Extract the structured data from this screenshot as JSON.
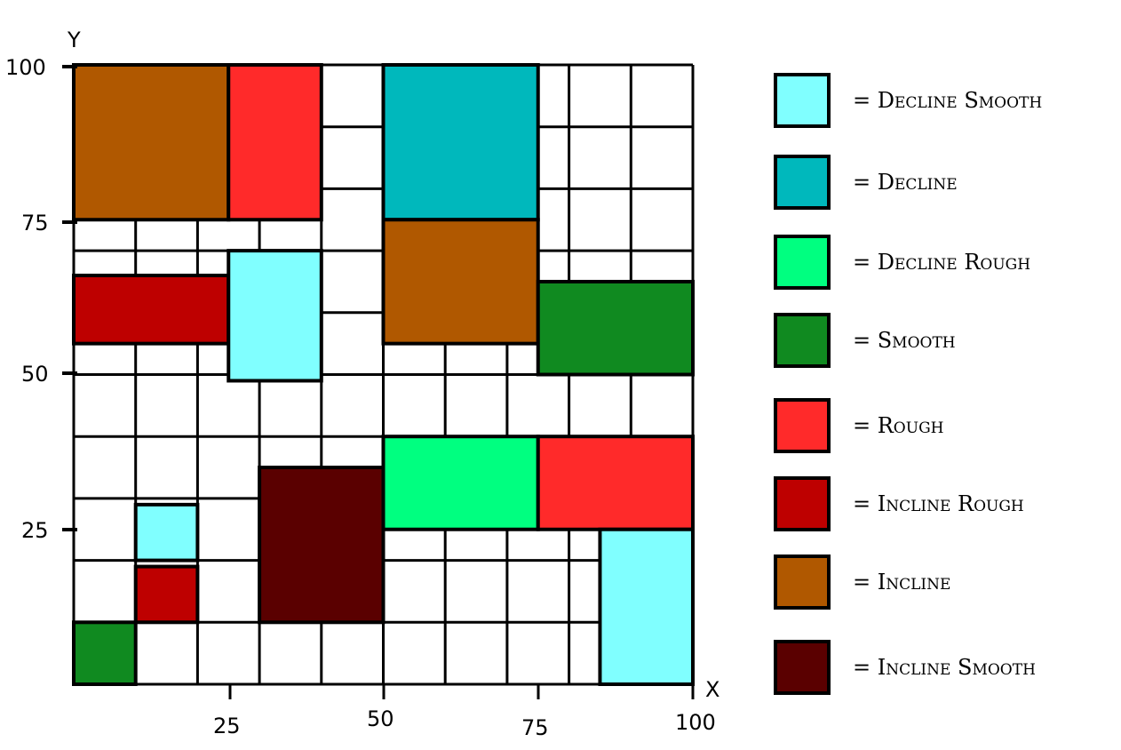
{
  "axes": {
    "x_label": "X",
    "y_label": "Y",
    "x_ticks": [
      "25",
      "50",
      "75",
      "100"
    ],
    "y_ticks": [
      "100",
      "75",
      "50",
      "25"
    ],
    "range": [
      0,
      100
    ],
    "grid_step": 10
  },
  "terrain_colors": {
    "decline_smooth": "#80ffff",
    "decline": "#00b8bc",
    "decline_rough": "#00ff80",
    "smooth": "#108a20",
    "rough": "#ff2a2a",
    "incline_rough": "#be0000",
    "incline": "#b05800",
    "incline_smooth": "#5a0000"
  },
  "legend": [
    {
      "key": "decline_smooth",
      "label": "= Decline Smooth"
    },
    {
      "key": "decline",
      "label": "= Decline"
    },
    {
      "key": "decline_rough",
      "label": "= Decline Rough"
    },
    {
      "key": "smooth",
      "label": "= Smooth"
    },
    {
      "key": "rough",
      "label": "= Rough"
    },
    {
      "key": "incline_rough",
      "label": "= Incline Rough"
    },
    {
      "key": "incline",
      "label": "= Incline"
    },
    {
      "key": "incline_smooth",
      "label": "= Incline Smooth"
    }
  ],
  "regions": [
    {
      "terrain": "incline",
      "x0": 0,
      "x1": 25,
      "y0": 75,
      "y1": 100
    },
    {
      "terrain": "rough",
      "x0": 25,
      "x1": 40,
      "y0": 75,
      "y1": 100
    },
    {
      "terrain": "decline",
      "x0": 50,
      "x1": 75,
      "y0": 75,
      "y1": 100
    },
    {
      "terrain": "incline",
      "x0": 50,
      "x1": 75,
      "y0": 55,
      "y1": 75
    },
    {
      "terrain": "incline_rough",
      "x0": 0,
      "x1": 25,
      "y0": 55,
      "y1": 66
    },
    {
      "terrain": "decline_smooth",
      "x0": 25,
      "x1": 40,
      "y0": 49,
      "y1": 70
    },
    {
      "terrain": "smooth",
      "x0": 75,
      "x1": 100,
      "y0": 50,
      "y1": 65
    },
    {
      "terrain": "decline_rough",
      "x0": 50,
      "x1": 75,
      "y0": 25,
      "y1": 40
    },
    {
      "terrain": "rough",
      "x0": 75,
      "x1": 100,
      "y0": 25,
      "y1": 40
    },
    {
      "terrain": "incline_smooth",
      "x0": 30,
      "x1": 50,
      "y0": 10,
      "y1": 35
    },
    {
      "terrain": "decline_smooth",
      "x0": 10,
      "x1": 20,
      "y0": 20,
      "y1": 29
    },
    {
      "terrain": "incline_rough",
      "x0": 10,
      "x1": 20,
      "y0": 10,
      "y1": 19
    },
    {
      "terrain": "decline_smooth",
      "x0": 85,
      "x1": 100,
      "y0": 0,
      "y1": 25
    },
    {
      "terrain": "smooth",
      "x0": 0,
      "x1": 10,
      "y0": 0,
      "y1": 10
    }
  ]
}
